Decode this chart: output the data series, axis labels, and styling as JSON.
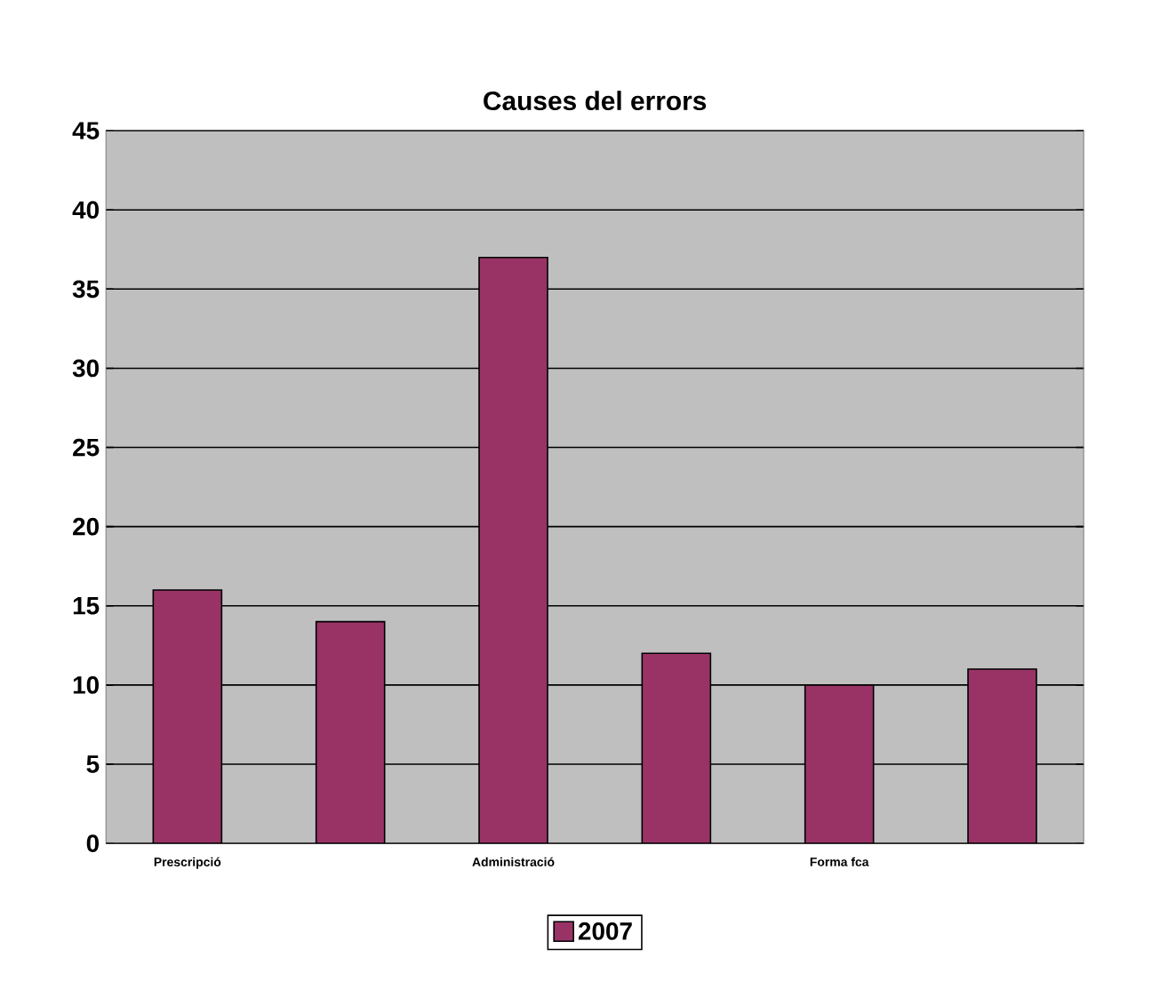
{
  "chart_data": {
    "type": "bar",
    "title": "Causes del errors",
    "categories": [
      "Prescripció",
      null,
      "Administració",
      null,
      "Forma fca",
      null
    ],
    "series": [
      {
        "name": "2007",
        "color": "#993366",
        "values": [
          16,
          14,
          37,
          12,
          10,
          11
        ]
      }
    ],
    "ylim": [
      0,
      45
    ],
    "yticks": [
      0,
      5,
      10,
      15,
      20,
      25,
      30,
      35,
      40,
      45
    ],
    "grid": "y",
    "legend": "bottom"
  }
}
